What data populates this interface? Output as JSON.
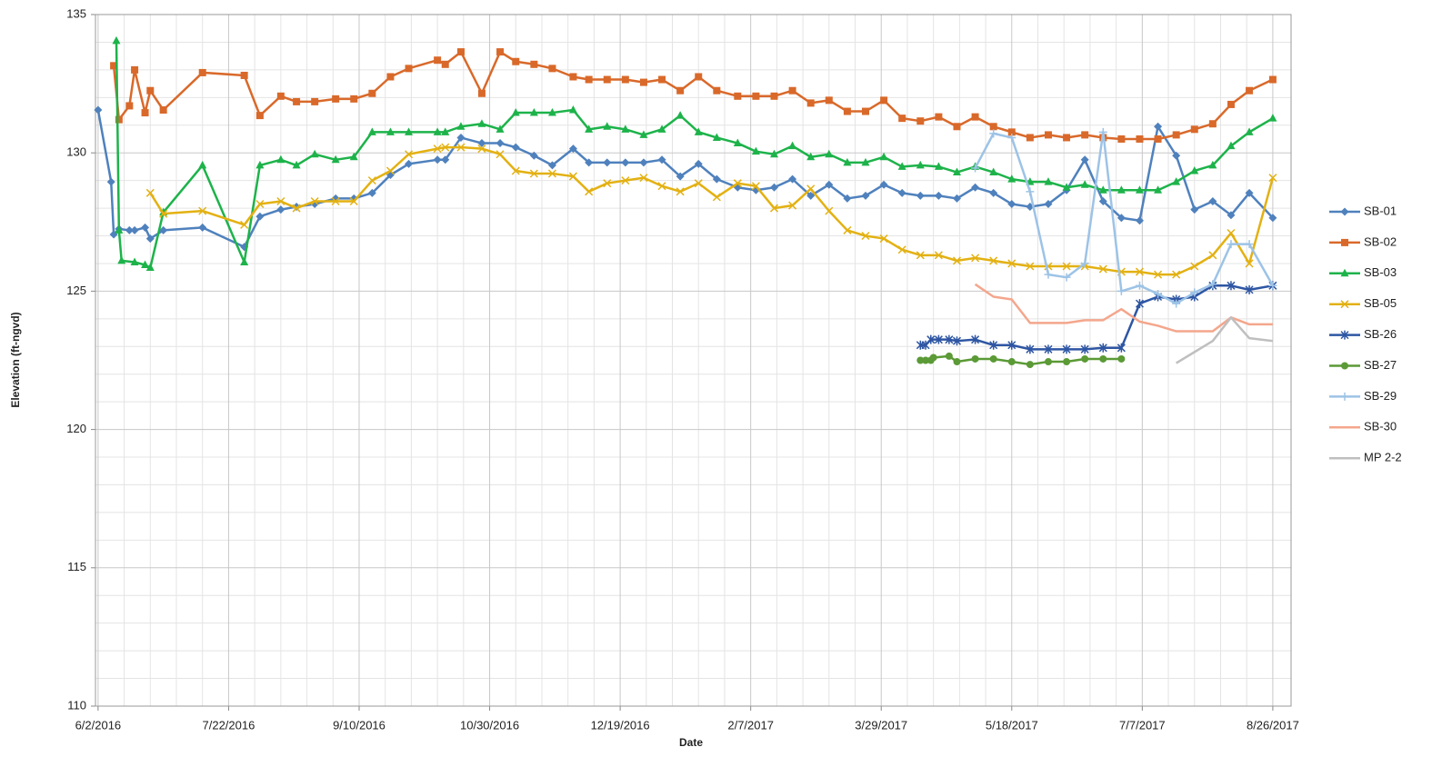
{
  "chart_data": {
    "type": "line",
    "x_label": "Date",
    "y_label": "Elevation (ft-ngvd)",
    "xlim": [
      "2016-06-01",
      "2017-09-02"
    ],
    "xticks": [
      {
        "value": "2016-06-02",
        "label": "6/2/2016"
      },
      {
        "value": "2016-07-22",
        "label": "7/22/2016"
      },
      {
        "value": "2016-09-10",
        "label": "9/10/2016"
      },
      {
        "value": "2016-10-30",
        "label": "10/30/2016"
      },
      {
        "value": "2016-12-19",
        "label": "12/19/2016"
      },
      {
        "value": "2017-02-07",
        "label": "2/7/2017"
      },
      {
        "value": "2017-03-29",
        "label": "3/29/2017"
      },
      {
        "value": "2017-05-18",
        "label": "5/18/2017"
      },
      {
        "value": "2017-07-07",
        "label": "7/7/2017"
      },
      {
        "value": "2017-08-26",
        "label": "8/26/2017"
      }
    ],
    "ylim": [
      110,
      135
    ],
    "yticks": [
      110,
      115,
      120,
      125,
      130,
      135
    ],
    "grid": true,
    "legend": "right",
    "series": [
      {
        "name": "SB-01",
        "color": "#4f81bd",
        "marker": "diamond",
        "x": [
          "2016-06-02",
          "2016-06-07",
          "2016-06-08",
          "2016-06-10",
          "2016-06-14",
          "2016-06-16",
          "2016-06-20",
          "2016-06-22",
          "2016-06-27",
          "2016-07-12",
          "2016-07-28",
          "2016-08-03",
          "2016-08-11",
          "2016-08-17",
          "2016-08-24",
          "2016-09-01",
          "2016-09-08",
          "2016-09-15",
          "2016-09-22",
          "2016-09-29",
          "2016-10-10",
          "2016-10-13",
          "2016-10-19",
          "2016-10-27",
          "2016-11-03",
          "2016-11-09",
          "2016-11-16",
          "2016-11-23",
          "2016-12-01",
          "2016-12-07",
          "2016-12-14",
          "2016-12-21",
          "2016-12-28",
          "2017-01-04",
          "2017-01-11",
          "2017-01-18",
          "2017-01-25",
          "2017-02-02",
          "2017-02-09",
          "2017-02-16",
          "2017-02-23",
          "2017-03-02",
          "2017-03-09",
          "2017-03-16",
          "2017-03-23",
          "2017-03-30",
          "2017-04-06",
          "2017-04-13",
          "2017-04-20",
          "2017-04-27",
          "2017-05-04",
          "2017-05-11",
          "2017-05-18",
          "2017-05-25",
          "2017-06-01",
          "2017-06-08",
          "2017-06-15",
          "2017-06-22",
          "2017-06-29",
          "2017-07-06",
          "2017-07-13",
          "2017-07-20",
          "2017-07-27",
          "2017-08-03",
          "2017-08-10",
          "2017-08-17",
          "2017-08-26"
        ],
        "values": [
          131.55,
          128.95,
          127.05,
          127.25,
          127.2,
          127.2,
          127.3,
          126.9,
          127.2,
          127.3,
          126.6,
          127.7,
          127.95,
          128.05,
          128.15,
          128.35,
          128.35,
          128.55,
          129.2,
          129.6,
          129.75,
          129.75,
          130.55,
          130.35,
          130.35,
          130.2,
          129.9,
          129.55,
          130.15,
          129.65,
          129.65,
          129.65,
          129.65,
          129.75,
          129.15,
          129.6,
          129.05,
          128.75,
          128.65,
          128.75,
          129.05,
          128.45,
          128.85,
          128.35,
          128.45,
          128.85,
          128.55,
          128.45,
          128.45,
          128.35,
          128.75,
          128.55,
          128.15,
          128.05,
          128.15,
          128.65,
          129.75,
          128.25,
          127.65,
          127.55,
          130.95,
          129.9,
          127.95,
          128.25,
          127.75,
          128.55,
          127.65
        ]
      },
      {
        "name": "SB-02",
        "color": "#d9692a",
        "marker": "square",
        "x": [
          "2016-06-08",
          "2016-06-10",
          "2016-06-14",
          "2016-06-16",
          "2016-06-20",
          "2016-06-22",
          "2016-06-27",
          "2016-07-12",
          "2016-07-28",
          "2016-08-03",
          "2016-08-11",
          "2016-08-17",
          "2016-08-24",
          "2016-09-01",
          "2016-09-08",
          "2016-09-15",
          "2016-09-22",
          "2016-09-29",
          "2016-10-10",
          "2016-10-13",
          "2016-10-19",
          "2016-10-27",
          "2016-11-03",
          "2016-11-09",
          "2016-11-16",
          "2016-11-23",
          "2016-12-01",
          "2016-12-07",
          "2016-12-14",
          "2016-12-21",
          "2016-12-28",
          "2017-01-04",
          "2017-01-11",
          "2017-01-18",
          "2017-01-25",
          "2017-02-02",
          "2017-02-09",
          "2017-02-16",
          "2017-02-23",
          "2017-03-02",
          "2017-03-09",
          "2017-03-16",
          "2017-03-23",
          "2017-03-30",
          "2017-04-06",
          "2017-04-13",
          "2017-04-20",
          "2017-04-27",
          "2017-05-04",
          "2017-05-11",
          "2017-05-18",
          "2017-05-25",
          "2017-06-01",
          "2017-06-08",
          "2017-06-15",
          "2017-06-22",
          "2017-06-29",
          "2017-07-06",
          "2017-07-13",
          "2017-07-20",
          "2017-07-27",
          "2017-08-03",
          "2017-08-10",
          "2017-08-17",
          "2017-08-26"
        ],
        "values": [
          133.15,
          131.2,
          131.7,
          133.0,
          131.45,
          132.25,
          131.55,
          132.9,
          132.8,
          131.35,
          132.05,
          131.85,
          131.85,
          131.95,
          131.95,
          132.15,
          132.75,
          133.05,
          133.35,
          133.2,
          133.65,
          132.15,
          133.65,
          133.3,
          133.2,
          133.05,
          132.75,
          132.65,
          132.65,
          132.65,
          132.55,
          132.65,
          132.25,
          132.75,
          132.25,
          132.05,
          132.05,
          132.05,
          132.25,
          131.8,
          131.9,
          131.5,
          131.5,
          131.9,
          131.25,
          131.15,
          131.3,
          130.95,
          131.3,
          130.95,
          130.75,
          130.55,
          130.65,
          130.55,
          130.65,
          130.55,
          130.5,
          130.5,
          130.5,
          130.65,
          130.85,
          131.05,
          131.75,
          132.25,
          132.65
        ]
      },
      {
        "name": "SB-03",
        "color": "#1db34a",
        "marker": "triangle",
        "x": [
          "2016-06-09",
          "2016-06-10",
          "2016-06-11",
          "2016-06-16",
          "2016-06-20",
          "2016-06-22",
          "2016-06-27",
          "2016-07-12",
          "2016-07-28",
          "2016-08-03",
          "2016-08-11",
          "2016-08-17",
          "2016-08-24",
          "2016-09-01",
          "2016-09-08",
          "2016-09-15",
          "2016-09-22",
          "2016-09-29",
          "2016-10-10",
          "2016-10-13",
          "2016-10-19",
          "2016-10-27",
          "2016-11-03",
          "2016-11-09",
          "2016-11-16",
          "2016-11-23",
          "2016-12-01",
          "2016-12-07",
          "2016-12-14",
          "2016-12-21",
          "2016-12-28",
          "2017-01-04",
          "2017-01-11",
          "2017-01-18",
          "2017-01-25",
          "2017-02-02",
          "2017-02-09",
          "2017-02-16",
          "2017-02-23",
          "2017-03-02",
          "2017-03-09",
          "2017-03-16",
          "2017-03-23",
          "2017-03-30",
          "2017-04-06",
          "2017-04-13",
          "2017-04-20",
          "2017-04-27",
          "2017-05-04",
          "2017-05-11",
          "2017-05-18",
          "2017-05-25",
          "2017-06-01",
          "2017-06-08",
          "2017-06-15",
          "2017-06-22",
          "2017-06-29",
          "2017-07-06",
          "2017-07-13",
          "2017-07-20",
          "2017-07-27",
          "2017-08-03",
          "2017-08-10",
          "2017-08-17",
          "2017-08-26"
        ],
        "values": [
          134.05,
          127.2,
          126.1,
          126.05,
          125.95,
          125.85,
          127.85,
          129.55,
          126.05,
          129.55,
          129.75,
          129.55,
          129.95,
          129.75,
          129.85,
          130.75,
          130.75,
          130.75,
          130.75,
          130.75,
          130.95,
          131.05,
          130.85,
          131.45,
          131.45,
          131.45,
          131.55,
          130.85,
          130.95,
          130.85,
          130.65,
          130.85,
          131.35,
          130.75,
          130.55,
          130.35,
          130.05,
          129.95,
          130.25,
          129.85,
          129.95,
          129.65,
          129.65,
          129.85,
          129.5,
          129.55,
          129.5,
          129.3,
          129.5,
          129.3,
          129.05,
          128.95,
          128.95,
          128.75,
          128.85,
          128.65,
          128.65,
          128.65,
          128.65,
          128.95,
          129.35,
          129.55,
          130.25,
          130.75,
          131.25
        ]
      },
      {
        "name": "SB-05",
        "color": "#e3b112",
        "marker": "x",
        "x": [
          "2016-06-22",
          "2016-06-27",
          "2016-07-12",
          "2016-07-28",
          "2016-08-03",
          "2016-08-11",
          "2016-08-17",
          "2016-08-24",
          "2016-09-01",
          "2016-09-08",
          "2016-09-15",
          "2016-09-22",
          "2016-09-29",
          "2016-10-10",
          "2016-10-13",
          "2016-10-19",
          "2016-10-27",
          "2016-11-03",
          "2016-11-09",
          "2016-11-16",
          "2016-11-23",
          "2016-12-01",
          "2016-12-07",
          "2016-12-14",
          "2016-12-21",
          "2016-12-28",
          "2017-01-04",
          "2017-01-11",
          "2017-01-18",
          "2017-01-25",
          "2017-02-02",
          "2017-02-09",
          "2017-02-16",
          "2017-02-23",
          "2017-03-02",
          "2017-03-09",
          "2017-03-16",
          "2017-03-23",
          "2017-03-30",
          "2017-04-06",
          "2017-04-13",
          "2017-04-20",
          "2017-04-27",
          "2017-05-04",
          "2017-05-11",
          "2017-05-18",
          "2017-05-25",
          "2017-06-01",
          "2017-06-08",
          "2017-06-15",
          "2017-06-22",
          "2017-06-29",
          "2017-07-06",
          "2017-07-13",
          "2017-07-20",
          "2017-07-27",
          "2017-08-03",
          "2017-08-10",
          "2017-08-17",
          "2017-08-26"
        ],
        "values": [
          128.55,
          127.8,
          127.9,
          127.4,
          128.15,
          128.25,
          128.0,
          128.25,
          128.25,
          128.25,
          129.0,
          129.35,
          129.95,
          130.15,
          130.2,
          130.2,
          130.15,
          129.95,
          129.35,
          129.25,
          129.25,
          129.15,
          128.6,
          128.9,
          129.0,
          129.1,
          128.8,
          128.6,
          128.9,
          128.4,
          128.9,
          128.8,
          128.0,
          128.1,
          128.7,
          127.9,
          127.2,
          127.0,
          126.9,
          126.5,
          126.3,
          126.3,
          126.1,
          126.2,
          126.1,
          126.0,
          125.9,
          125.9,
          125.9,
          125.9,
          125.8,
          125.7,
          125.7,
          125.6,
          125.6,
          125.9,
          126.3,
          127.1,
          126.0,
          129.1
        ]
      },
      {
        "name": "SB-26",
        "color": "#2e56a3",
        "marker": "star",
        "x": [
          "2017-04-13",
          "2017-04-15",
          "2017-04-17",
          "2017-04-20",
          "2017-04-24",
          "2017-04-27",
          "2017-05-04",
          "2017-05-11",
          "2017-05-18",
          "2017-05-25",
          "2017-06-01",
          "2017-06-08",
          "2017-06-15",
          "2017-06-22",
          "2017-06-29",
          "2017-07-06",
          "2017-07-13",
          "2017-07-20",
          "2017-07-27",
          "2017-08-03",
          "2017-08-10",
          "2017-08-17",
          "2017-08-26"
        ],
        "values": [
          123.05,
          123.05,
          123.25,
          123.25,
          123.25,
          123.2,
          123.25,
          123.05,
          123.05,
          122.9,
          122.9,
          122.9,
          122.9,
          122.95,
          122.95,
          124.55,
          124.8,
          124.7,
          124.8,
          125.2,
          125.2,
          125.05,
          125.2
        ]
      },
      {
        "name": "SB-27",
        "color": "#5b9a36",
        "marker": "circle",
        "x": [
          "2017-04-13",
          "2017-04-15",
          "2017-04-17",
          "2017-04-18",
          "2017-04-24",
          "2017-04-27",
          "2017-05-04",
          "2017-05-11",
          "2017-05-18",
          "2017-05-25",
          "2017-06-01",
          "2017-06-08",
          "2017-06-15",
          "2017-06-22",
          "2017-06-29"
        ],
        "values": [
          122.5,
          122.5,
          122.5,
          122.6,
          122.65,
          122.45,
          122.55,
          122.55,
          122.45,
          122.35,
          122.45,
          122.45,
          122.55,
          122.55,
          122.55
        ]
      },
      {
        "name": "SB-29",
        "color": "#9dc3e6",
        "marker": "plus",
        "x": [
          "2017-05-04",
          "2017-05-11",
          "2017-05-18",
          "2017-05-25",
          "2017-06-01",
          "2017-06-08",
          "2017-06-15",
          "2017-06-22",
          "2017-06-29",
          "2017-07-06",
          "2017-07-13",
          "2017-07-20",
          "2017-07-27",
          "2017-08-03",
          "2017-08-10",
          "2017-08-17",
          "2017-08-26"
        ],
        "values": [
          129.45,
          130.7,
          130.55,
          128.6,
          125.6,
          125.5,
          126.0,
          130.75,
          125.0,
          125.2,
          124.9,
          124.55,
          124.95,
          125.25,
          126.7,
          126.7,
          125.2
        ]
      },
      {
        "name": "SB-30",
        "color": "#f4a68c",
        "marker": "none",
        "x": [
          "2017-05-04",
          "2017-05-11",
          "2017-05-18",
          "2017-05-25",
          "2017-06-01",
          "2017-06-08",
          "2017-06-15",
          "2017-06-22",
          "2017-06-29",
          "2017-07-06",
          "2017-07-13",
          "2017-07-20",
          "2017-07-27",
          "2017-08-03",
          "2017-08-10",
          "2017-08-17",
          "2017-08-26"
        ],
        "values": [
          125.25,
          124.8,
          124.7,
          123.85,
          123.85,
          123.85,
          123.95,
          123.95,
          124.35,
          123.9,
          123.75,
          123.55,
          123.55,
          123.55,
          124.05,
          123.8,
          123.8
        ]
      },
      {
        "name": "MP 2-2",
        "color": "#bfbfbf",
        "marker": "none",
        "x": [
          "2017-07-20",
          "2017-07-27",
          "2017-08-03",
          "2017-08-10",
          "2017-08-17",
          "2017-08-26"
        ],
        "values": [
          122.4,
          122.8,
          123.2,
          124.05,
          123.3,
          123.2
        ]
      }
    ]
  }
}
